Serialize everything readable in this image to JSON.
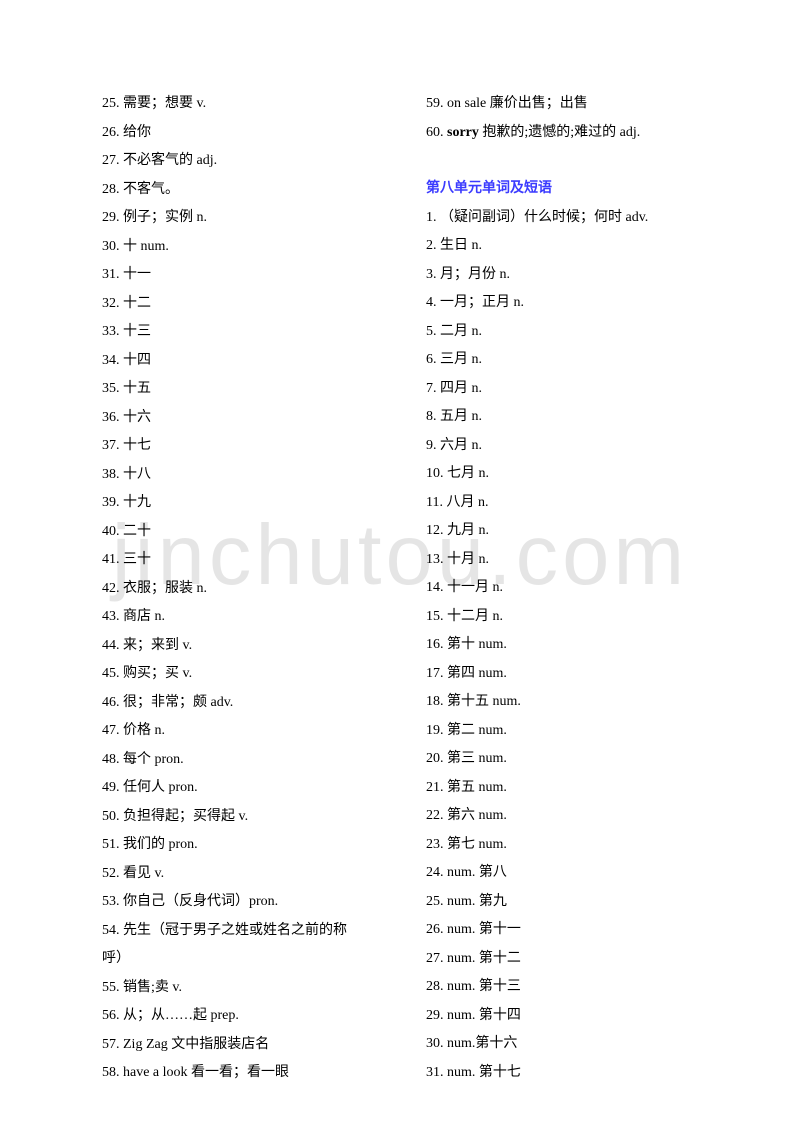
{
  "watermark": "jinchutou.com",
  "left_col": [
    {
      "n": "25.",
      "t": "需要；想要 v."
    },
    {
      "n": "26.",
      "t": " 给你"
    },
    {
      "n": "27.",
      "t": " 不必客气的 adj."
    },
    {
      "n": "28.",
      "t": " 不客气。"
    },
    {
      "n": "29.",
      "t": " 例子；实例 n."
    },
    {
      "n": "30.",
      "t": "    十 num."
    },
    {
      "n": "31.",
      "t": "    十一"
    },
    {
      "n": "32.",
      "t": "    十二"
    },
    {
      "n": "33.",
      "t": "    十三"
    },
    {
      "n": "34.",
      "t": "    十四"
    },
    {
      "n": "35.",
      "t": "    十五"
    },
    {
      "n": "36.",
      "t": "    十六"
    },
    {
      "n": "37.",
      "t": "    十七"
    },
    {
      "n": "38.",
      "t": "    十八"
    },
    {
      "n": "39.",
      "t": "    十九"
    },
    {
      "n": "40.",
      "t": "    二十"
    },
    {
      "n": "41.",
      "t": "    三十"
    },
    {
      "n": "42.",
      "t": "    衣服；服装 n."
    },
    {
      "n": "43.",
      "t": "   商店 n."
    },
    {
      "n": "44.",
      "t": "    来；来到 v."
    },
    {
      "n": "45.",
      "t": "    购买；买 v."
    },
    {
      "n": "46.",
      "t": "    很；非常；颇 adv."
    },
    {
      "n": "47.",
      "t": "    价格 n."
    },
    {
      "n": "48.",
      "t": "      每个 pron."
    },
    {
      "n": "49.",
      "t": "   任何人 pron."
    },
    {
      "n": "50.",
      "t": "负担得起；买得起 v."
    },
    {
      "n": "51.",
      "t": "   我们的 pron."
    },
    {
      "n": "52.",
      "t": "   看见 v."
    },
    {
      "n": "53.",
      "t": "   你自己（反身代词）pron."
    },
    {
      "n": "54.",
      "t": "   先生（冠于男子之姓或姓名之前的称"
    },
    {
      "n": "",
      "t": "   呼）"
    },
    {
      "n": "55.",
      "t": "    销售;卖 v."
    },
    {
      "n": "56.",
      "t": "    从；从……起 prep."
    },
    {
      "n": "57.",
      "t": "Zig Zag      文中指服装店名"
    },
    {
      "n": "58.",
      "t": "have a look      看一看；看一眼"
    }
  ],
  "right_top": [
    {
      "n": "59.",
      "t": "on sale    廉价出售；出售"
    },
    {
      "n": "60.",
      "pre": "sorry",
      "t": "   抱歉的;遗憾的;难过的 adj."
    }
  ],
  "section_title": "第八单元单词及短语",
  "right_list": [
    {
      "n": "1.",
      "t": "   （疑问副词）什么时候；何时 adv."
    },
    {
      "n": "2.",
      "t": "    生日 n."
    },
    {
      "n": "3.",
      "t": "     月；月份 n."
    },
    {
      "n": "4.",
      "t": "    一月；正月 n."
    },
    {
      "n": "5.",
      "t": "    二月 n."
    },
    {
      "n": "6.",
      "t": "    三月 n."
    },
    {
      "n": "7.",
      "t": "    四月 n."
    },
    {
      "n": "8.",
      "t": "    五月 n."
    },
    {
      "n": "9.",
      "t": "    六月 n."
    },
    {
      "n": "10.",
      "t": "   七月 n."
    },
    {
      "n": "11.",
      "t": "   八月 n."
    },
    {
      "n": "12.",
      "t": "   九月 n."
    },
    {
      "n": "13.",
      "t": "   十月 n."
    },
    {
      "n": "14.",
      "t": "   十一月 n."
    },
    {
      "n": "15.",
      "t": "   十二月 n."
    },
    {
      "n": "16.",
      "t": "   第十 num."
    },
    {
      "n": "17.",
      "t": "   第四 num."
    },
    {
      "n": "18.",
      "t": "   第十五 num."
    },
    {
      "n": "19.",
      "t": "   第二 num."
    },
    {
      "n": "20.",
      "t": "   第三 num."
    },
    {
      "n": "21.",
      "t": "   第五 num."
    },
    {
      "n": "22.",
      "t": "   第六 num."
    },
    {
      "n": "23.",
      "t": "    第七 num."
    },
    {
      "n": "24.",
      "t": "    num. 第八"
    },
    {
      "n": "25.",
      "t": "    num. 第九"
    },
    {
      "n": "26.",
      "t": "num. 第十一"
    },
    {
      "n": "27.",
      "t": "   num. 第十二"
    },
    {
      "n": "28.",
      "t": "   num. 第十三"
    },
    {
      "n": "29.",
      "t": "num. 第十四"
    },
    {
      "n": "30.",
      "t": "    num.第十六"
    },
    {
      "n": "31.",
      "t": "num. 第十七"
    }
  ]
}
